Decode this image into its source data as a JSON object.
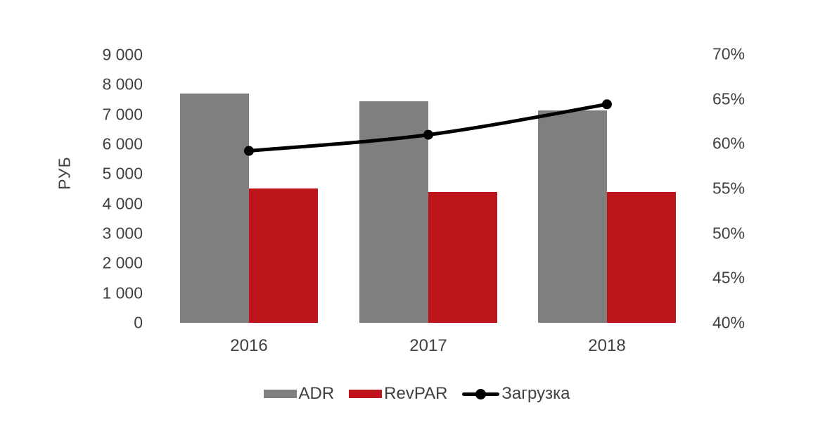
{
  "chart_data": {
    "type": "bar+line",
    "categories": [
      "2016",
      "2017",
      "2018"
    ],
    "series": [
      {
        "name": "ADR",
        "type": "bar",
        "axis": "left",
        "color": "#7f7f7f",
        "values": [
          7700,
          7440,
          7130
        ]
      },
      {
        "name": "RevPAR",
        "type": "bar",
        "axis": "left",
        "color": "#be151c",
        "values": [
          4510,
          4390,
          4390
        ]
      },
      {
        "name": "Загрузка",
        "type": "line",
        "axis": "right",
        "color": "#000000",
        "values": [
          59.2,
          61.0,
          64.4
        ],
        "unit": "%"
      }
    ],
    "left_axis": {
      "title": "РУБ",
      "min": 0,
      "max": 9000,
      "step": 1000,
      "tick_labels": [
        "9 000",
        "8 000",
        "7 000",
        "6 000",
        "5 000",
        "4 000",
        "3 000",
        "2 000",
        "1 000",
        "0"
      ]
    },
    "right_axis": {
      "min": 40,
      "max": 70,
      "step": 5,
      "tick_labels": [
        "70%",
        "65%",
        "60%",
        "55%",
        "50%",
        "45%",
        "40%"
      ]
    },
    "legend": {
      "position": "bottom",
      "items": [
        "ADR",
        "RevPAR",
        "Загрузка"
      ]
    },
    "grid": false,
    "background": "#ffffff"
  },
  "colors": {
    "adr_bar": "#7f7f7f",
    "revpar_bar": "#be151c",
    "occupancy_line": "#000000",
    "text": "#404040",
    "background": "#ffffff"
  }
}
